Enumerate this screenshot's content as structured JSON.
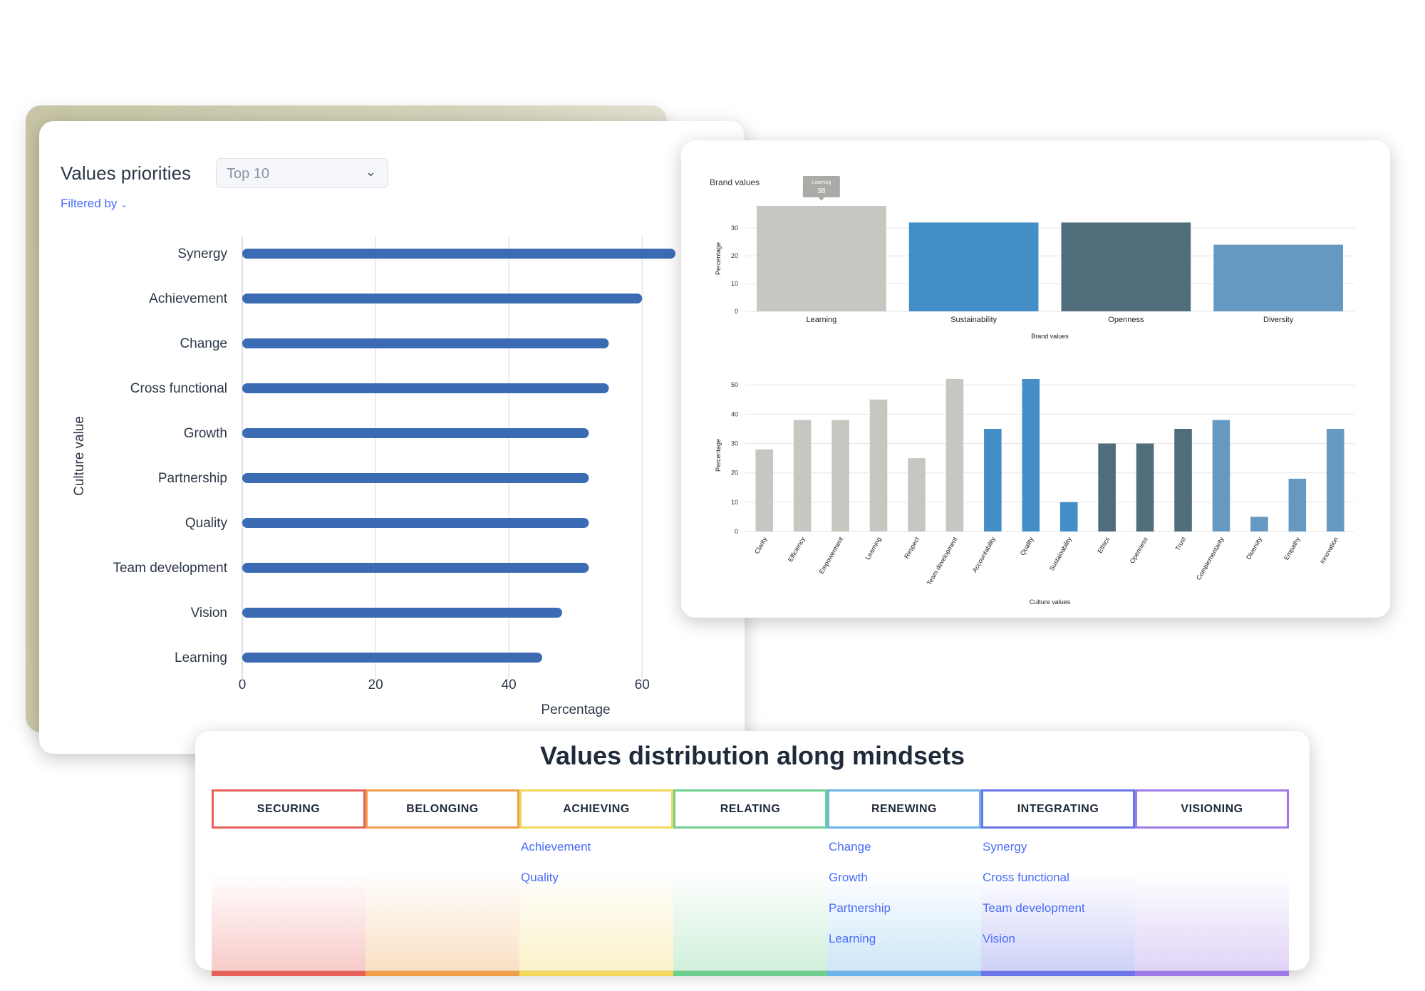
{
  "values_card": {
    "title": "Values priorities",
    "select_value": "Top 10",
    "filtered_by": "Filtered by"
  },
  "mindsets": {
    "title": "Values distribution along mindsets",
    "columns": [
      {
        "label": "SECURING",
        "color": "#e8605a",
        "items": []
      },
      {
        "label": "BELONGING",
        "color": "#f0a04b",
        "items": []
      },
      {
        "label": "ACHIEVING",
        "color": "#f1d75a",
        "items": [
          "Achievement",
          "Quality"
        ]
      },
      {
        "label": "RELATING",
        "color": "#6fcf8f",
        "items": []
      },
      {
        "label": "RENEWING",
        "color": "#6bb3e8",
        "items": [
          "Change",
          "Growth",
          "Partnership",
          "Learning"
        ]
      },
      {
        "label": "INTEGRATING",
        "color": "#6b74e8",
        "items": [
          "Synergy",
          "Cross functional",
          "Team development",
          "Vision"
        ]
      },
      {
        "label": "VISIONING",
        "color": "#a07ae6",
        "items": []
      }
    ]
  },
  "chart_data": [
    {
      "type": "bar",
      "orientation": "horizontal",
      "categories": [
        "Synergy",
        "Achievement",
        "Change",
        "Cross functional",
        "Growth",
        "Partnership",
        "Quality",
        "Team development",
        "Vision",
        "Learning"
      ],
      "values": [
        65,
        60,
        55,
        55,
        52,
        52,
        52,
        52,
        48,
        45
      ],
      "xlabel": "Percentage",
      "ylabel": "Culture value",
      "xlim": [
        0,
        65
      ],
      "xticks": [
        0,
        20,
        40,
        60
      ],
      "grid": true,
      "color": "#3a6bb3"
    },
    {
      "type": "bar",
      "title": "Brand values",
      "categories": [
        "Learning",
        "Sustainability",
        "Openness",
        "Diversity"
      ],
      "values": [
        38,
        32,
        32,
        24
      ],
      "colors": [
        "#c5c7c1",
        "#438ec7",
        "#506d7b",
        "#6699c2"
      ],
      "xlabel": "Brand values",
      "ylabel": "Percentage",
      "ylim": [
        0,
        38
      ],
      "yticks": [
        0,
        10,
        20,
        30
      ],
      "grid": true,
      "tooltip": {
        "label": "Learning",
        "value": "38"
      }
    },
    {
      "type": "bar",
      "categories": [
        "Clarity",
        "Efficiency",
        "Empowerment",
        "Learning",
        "Respect",
        "Team development",
        "Accountability",
        "Quality",
        "Sustainability",
        "Ethics",
        "Openness",
        "Trust",
        "Complementarity",
        "Diversity",
        "Empathy",
        "Innovation"
      ],
      "values": [
        28,
        38,
        38,
        45,
        25,
        52,
        35,
        52,
        10,
        30,
        30,
        35,
        38,
        5,
        18,
        35
      ],
      "colors": [
        "#c5c7c1",
        "#c5c7c1",
        "#c5c7c1",
        "#c5c7c1",
        "#c5c7c1",
        "#c5c7c1",
        "#438ec7",
        "#438ec7",
        "#438ec7",
        "#506d7b",
        "#506d7b",
        "#506d7b",
        "#6699c2",
        "#6699c2",
        "#6699c2",
        "#6699c2"
      ],
      "xlabel": "Culture values",
      "ylabel": "Percentage",
      "ylim": [
        0,
        52
      ],
      "yticks": [
        0,
        10,
        20,
        30,
        40,
        50
      ],
      "grid": true
    }
  ]
}
